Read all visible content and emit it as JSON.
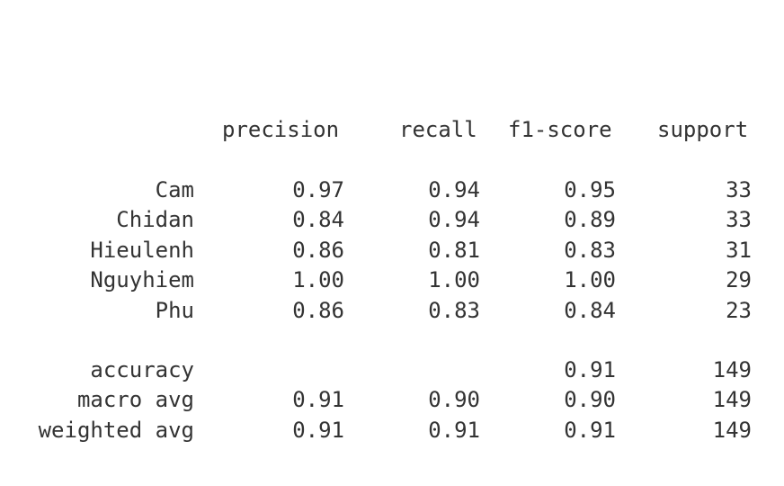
{
  "headers": {
    "precision": "precision",
    "recall": "recall",
    "f1": "f1-score",
    "support": "support"
  },
  "classes": [
    {
      "label": "Cam",
      "precision": "0.97",
      "recall": "0.94",
      "f1": "0.95",
      "support": "33"
    },
    {
      "label": "Chidan",
      "precision": "0.84",
      "recall": "0.94",
      "f1": "0.89",
      "support": "33"
    },
    {
      "label": "Hieulenh",
      "precision": "0.86",
      "recall": "0.81",
      "f1": "0.83",
      "support": "31"
    },
    {
      "label": "Nguyhiem",
      "precision": "1.00",
      "recall": "1.00",
      "f1": "1.00",
      "support": "29"
    },
    {
      "label": "Phu",
      "precision": "0.86",
      "recall": "0.83",
      "f1": "0.84",
      "support": "23"
    }
  ],
  "summary": [
    {
      "label": "accuracy",
      "precision": "",
      "recall": "",
      "f1": "0.91",
      "support": "149"
    },
    {
      "label": "macro avg",
      "precision": "0.91",
      "recall": "0.90",
      "f1": "0.90",
      "support": "149"
    },
    {
      "label": "weighted avg",
      "precision": "0.91",
      "recall": "0.91",
      "f1": "0.91",
      "support": "149"
    }
  ]
}
